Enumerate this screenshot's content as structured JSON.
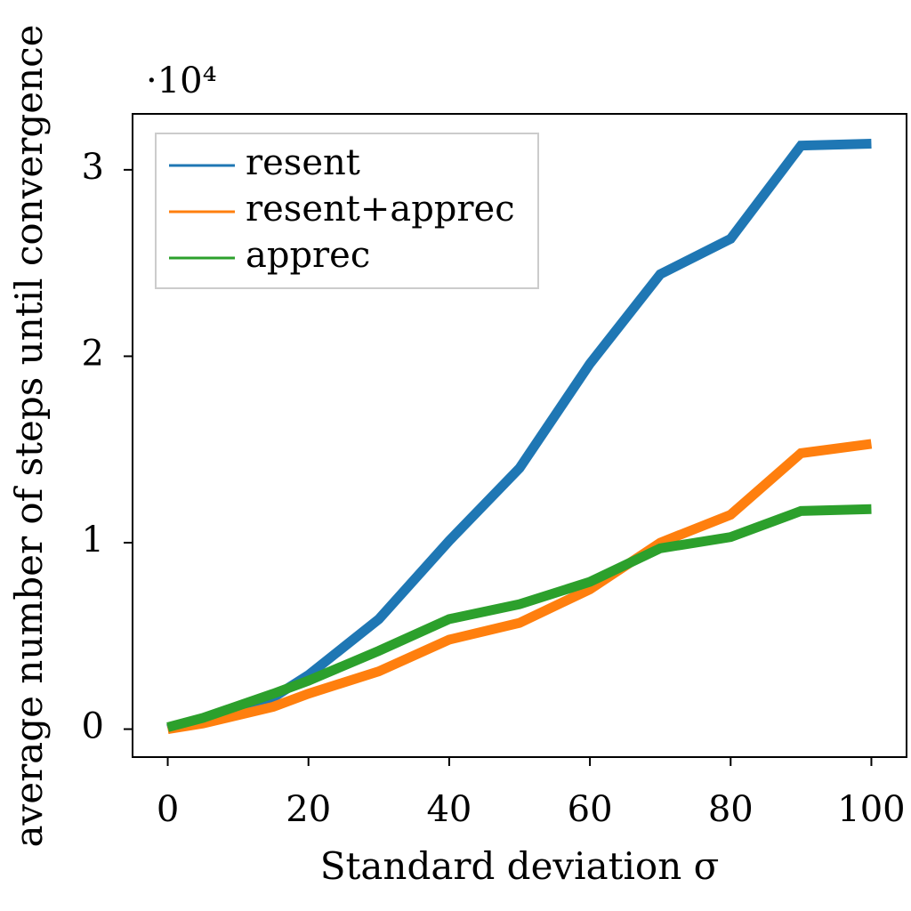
{
  "chart_data": {
    "type": "line",
    "xlabel": "Standard deviation σ",
    "ylabel": "average number of steps until convergence",
    "y_multiplier_label": "·10⁴",
    "xlim": [
      -5,
      105
    ],
    "ylim": [
      -0.15,
      3.3
    ],
    "x_ticks": [
      0,
      20,
      40,
      60,
      80,
      100
    ],
    "y_ticks": [
      0,
      1,
      2,
      3
    ],
    "x_tick_labels": [
      "0",
      "20",
      "40",
      "60",
      "80",
      "100"
    ],
    "y_tick_labels": [
      "0",
      "1",
      "2",
      "3"
    ],
    "x": [
      0,
      5,
      15,
      20,
      30,
      40,
      50,
      60,
      70,
      80,
      90,
      100
    ],
    "grid": false,
    "legend_position": "top-left",
    "series": [
      {
        "name": "resent",
        "color": "#1f77b4",
        "values": [
          0.0,
          0.05,
          0.17,
          0.29,
          0.59,
          1.01,
          1.4,
          1.96,
          2.44,
          2.63,
          3.13,
          3.14
        ]
      },
      {
        "name": "resent+apprec",
        "color": "#ff7f0e",
        "values": [
          0.0,
          0.03,
          0.12,
          0.19,
          0.31,
          0.48,
          0.57,
          0.75,
          1.0,
          1.15,
          1.48,
          1.53
        ]
      },
      {
        "name": "apprec",
        "color": "#2ca02c",
        "values": [
          0.01,
          0.06,
          0.19,
          0.26,
          0.42,
          0.59,
          0.67,
          0.79,
          0.97,
          1.03,
          1.17,
          1.18
        ]
      }
    ]
  }
}
